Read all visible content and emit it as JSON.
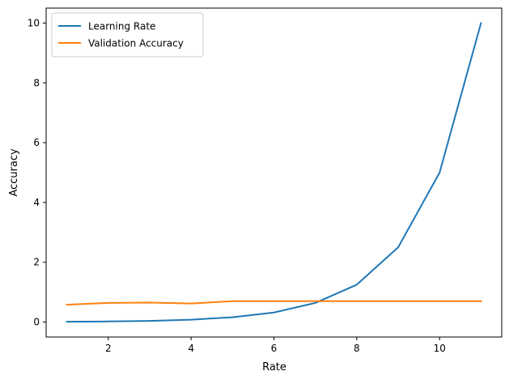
{
  "chart_data": {
    "type": "line",
    "title": "",
    "xlabel": "Rate",
    "ylabel": "Accuracy",
    "xlim": [
      0.5,
      11.5
    ],
    "ylim": [
      -0.5,
      10.5
    ],
    "xticks": [
      2,
      4,
      6,
      8,
      10
    ],
    "yticks": [
      0,
      2,
      4,
      6,
      8,
      10
    ],
    "grid": false,
    "legend_position": "top-left",
    "x": [
      1,
      2,
      3,
      4,
      5,
      6,
      7,
      8,
      9,
      10,
      11
    ],
    "series": [
      {
        "name": "Learning Rate",
        "color": "#1f77b4",
        "values": [
          0.01,
          0.02,
          0.04,
          0.08,
          0.16,
          0.32,
          0.64,
          1.25,
          2.5,
          5.0,
          10.0
        ]
      },
      {
        "name": "Validation Accuracy",
        "color": "#ff7f0e",
        "values": [
          0.58,
          0.64,
          0.65,
          0.62,
          0.7,
          0.7,
          0.7,
          0.7,
          0.7,
          0.7,
          0.7
        ]
      }
    ]
  }
}
